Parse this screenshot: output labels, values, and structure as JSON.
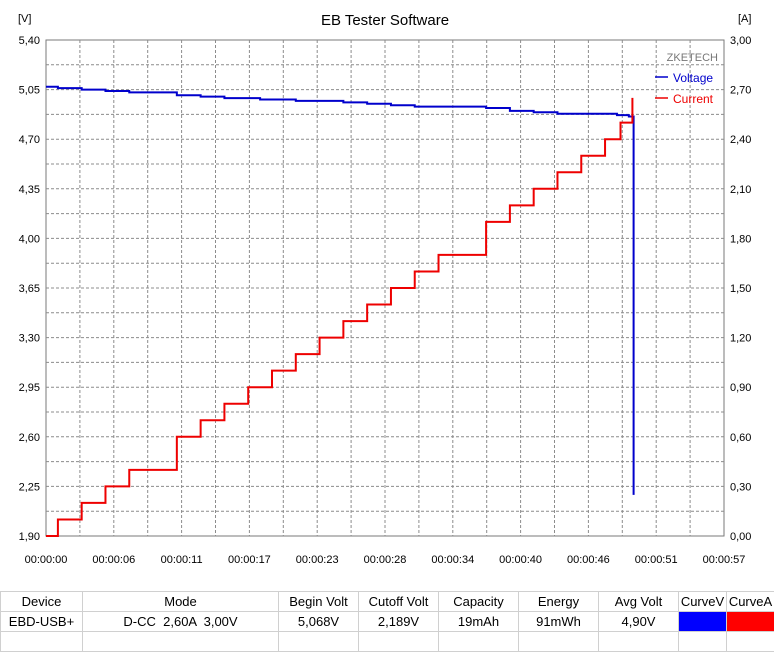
{
  "title": "EB Tester Software",
  "brand": "ZKETECH",
  "chart_data": {
    "type": "line",
    "title": "EB Tester Software",
    "left_axis_unit": "[V]",
    "right_axis_unit": "[A]",
    "left_ticks": [
      "5,40",
      "5,05",
      "4,70",
      "4,35",
      "4,00",
      "3,65",
      "3,30",
      "2,95",
      "2,60",
      "2,25",
      "1,90"
    ],
    "right_ticks": [
      "3,00",
      "2,70",
      "2,40",
      "2,10",
      "1,80",
      "1,50",
      "1,20",
      "0,90",
      "0,60",
      "0,30",
      "0,00"
    ],
    "x_ticks": [
      "00:00:00",
      "00:00:06",
      "00:00:11",
      "00:00:17",
      "00:00:23",
      "00:00:28",
      "00:00:34",
      "00:00:40",
      "00:00:46",
      "00:00:51",
      "00:00:57"
    ],
    "ylim_left": [
      1.9,
      5.4
    ],
    "ylim_right": [
      0.0,
      3.0
    ],
    "xlim": [
      0,
      57
    ],
    "grid": true,
    "legend_position": "top-right",
    "series": [
      {
        "name": "Voltage",
        "axis": "left",
        "color": "#0000cc",
        "step": true,
        "points": [
          [
            0,
            5.07
          ],
          [
            1,
            5.06
          ],
          [
            3,
            5.05
          ],
          [
            5,
            5.04
          ],
          [
            7,
            5.03
          ],
          [
            11,
            5.01
          ],
          [
            13,
            5.0
          ],
          [
            15,
            4.99
          ],
          [
            18,
            4.98
          ],
          [
            21,
            4.97
          ],
          [
            25,
            4.96
          ],
          [
            27,
            4.95
          ],
          [
            29,
            4.94
          ],
          [
            31,
            4.93
          ],
          [
            37,
            4.92
          ],
          [
            39,
            4.9
          ],
          [
            41,
            4.89
          ],
          [
            43,
            4.88
          ],
          [
            48,
            4.87
          ],
          [
            49,
            4.86
          ],
          [
            49.4,
            4.86
          ],
          [
            49.4,
            2.19
          ]
        ]
      },
      {
        "name": "Current",
        "axis": "right",
        "color": "#ee0000",
        "step": true,
        "points": [
          [
            0,
            0.0
          ],
          [
            1,
            0.1
          ],
          [
            3,
            0.2
          ],
          [
            5,
            0.3
          ],
          [
            7,
            0.4
          ],
          [
            11,
            0.6
          ],
          [
            13,
            0.7
          ],
          [
            15,
            0.8
          ],
          [
            17,
            0.9
          ],
          [
            19,
            1.0
          ],
          [
            21,
            1.1
          ],
          [
            23,
            1.2
          ],
          [
            25,
            1.3
          ],
          [
            27,
            1.4
          ],
          [
            29,
            1.5
          ],
          [
            31,
            1.6
          ],
          [
            33,
            1.7
          ],
          [
            37,
            1.9
          ],
          [
            39,
            2.0
          ],
          [
            41,
            2.1
          ],
          [
            43,
            2.2
          ],
          [
            45,
            2.3
          ],
          [
            47,
            2.4
          ],
          [
            48,
            2.4
          ],
          [
            48.3,
            2.5
          ],
          [
            49,
            2.5
          ],
          [
            49.3,
            2.65
          ]
        ]
      }
    ]
  },
  "summary": {
    "headers": [
      "Device",
      "Mode",
      "Begin Volt",
      "Cutoff Volt",
      "Capacity",
      "Energy",
      "Avg Volt",
      "CurveV",
      "CurveA"
    ],
    "row": [
      "EBD-USB+",
      "D-CC  2,60A  3,00V",
      "5,068V",
      "2,189V",
      "19mAh",
      "91mWh",
      "4,90V",
      "",
      ""
    ],
    "curve_colors": [
      "#0000ff",
      "#ff0000"
    ]
  }
}
